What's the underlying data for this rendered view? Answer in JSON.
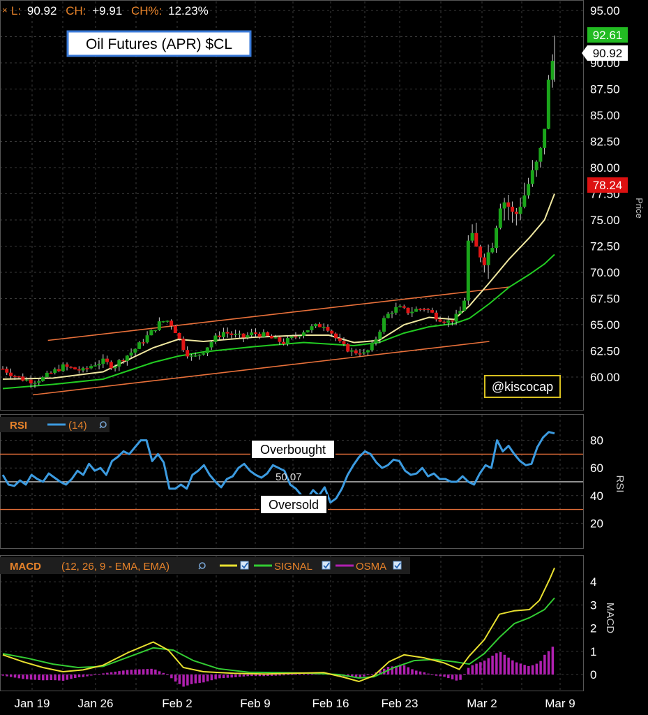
{
  "header": {
    "close_glyph": "×",
    "l_label": "L:",
    "l_value": "90.92",
    "ch_label": "CH:",
    "ch_value": "+9.91",
    "chp_label": "CH%:",
    "chp_value": "12.23%"
  },
  "title_box": "Oil Futures (APR) $CL",
  "watermark": "@kiscocap",
  "price_axis": {
    "label": "Price",
    "ticks": [
      "95.00",
      "92.50",
      "90.00",
      "87.50",
      "85.00",
      "82.50",
      "80.00",
      "77.50",
      "75.00",
      "72.50",
      "70.00",
      "67.50",
      "65.00",
      "62.50",
      "60.00"
    ],
    "high_tag": "92.61",
    "last_tag": "90.92",
    "low_tag": "78.24"
  },
  "rsi_panel": {
    "title": "RSI",
    "param": "(14)",
    "axis_label": "RSI",
    "ticks": [
      "80",
      "60",
      "40",
      "20"
    ],
    "overbought_label": "Overbought",
    "oversold_label": "Oversold",
    "mid_value": "50.07"
  },
  "macd_panel": {
    "title": "MACD",
    "params": "(12, 26, 9 - EMA, EMA)",
    "signal_label": "SIGNAL",
    "osma_label": "OSMA",
    "axis_label": "MACD",
    "ticks": [
      "4",
      "3",
      "2",
      "1",
      "0"
    ]
  },
  "x_axis": {
    "labels": [
      "Jan 19",
      "Jan 26",
      "Feb 2",
      "Feb 9",
      "Feb 16",
      "Feb 23",
      "Mar 2",
      "Mar 9"
    ]
  },
  "colors": {
    "background": "#000000",
    "grid": "#3a3a3a",
    "up_candle": "#1aa51a",
    "down_candle": "#e01515",
    "ma_fast": "#f0e8a0",
    "ma_slow": "#22cc22",
    "channel": "#e8703a",
    "rsi_line": "#3c9be0",
    "macd_line": "#e8e030",
    "signal_line": "#33cc33",
    "osma_bars": "#b020b0",
    "label_orange": "#e8832a",
    "tag_green": "#22bb22",
    "tag_red": "#dd1111"
  },
  "chart_data": [
    {
      "type": "candlestick",
      "title": "Oil Futures (APR) $CL",
      "ylabel": "Price",
      "ylim": [
        57.5,
        96.0
      ],
      "x_tick_labels": [
        "Jan 19",
        "Jan 26",
        "Feb 2",
        "Feb 9",
        "Feb 16",
        "Feb 23",
        "Mar 2",
        "Mar 9"
      ],
      "last": 90.92,
      "change": 9.91,
      "change_pct": 12.23,
      "session_high": 92.61,
      "session_low": 78.24,
      "close_path": [
        [
          0,
          60.8
        ],
        [
          4,
          60.2
        ],
        [
          8,
          59.8
        ],
        [
          12,
          59.6
        ],
        [
          16,
          59.9
        ],
        [
          20,
          60.5
        ],
        [
          24,
          61.0
        ],
        [
          28,
          60.8
        ],
        [
          32,
          60.6
        ],
        [
          36,
          61.2
        ],
        [
          40,
          61.5
        ],
        [
          44,
          61.0
        ],
        [
          48,
          61.8
        ],
        [
          52,
          62.5
        ],
        [
          56,
          63.5
        ],
        [
          60,
          64.5
        ],
        [
          63,
          65.3
        ],
        [
          66,
          65.4
        ],
        [
          68,
          64.8
        ],
        [
          70,
          63.8
        ],
        [
          72,
          62.8
        ],
        [
          74,
          62.1
        ],
        [
          76,
          61.8
        ],
        [
          80,
          62.5
        ],
        [
          84,
          63.6
        ],
        [
          88,
          64.3
        ],
        [
          92,
          64.0
        ],
        [
          96,
          63.8
        ],
        [
          100,
          64.2
        ],
        [
          104,
          64.0
        ],
        [
          108,
          63.6
        ],
        [
          112,
          63.3
        ],
        [
          116,
          63.8
        ],
        [
          120,
          64.4
        ],
        [
          124,
          64.8
        ],
        [
          128,
          65.0
        ],
        [
          130,
          64.6
        ],
        [
          132,
          64.0
        ],
        [
          134,
          63.3
        ],
        [
          136,
          62.9
        ],
        [
          138,
          62.6
        ],
        [
          140,
          62.3
        ],
        [
          142,
          62.5
        ],
        [
          144,
          62.2
        ],
        [
          146,
          62.6
        ],
        [
          148,
          63.3
        ],
        [
          150,
          64.3
        ],
        [
          152,
          65.5
        ],
        [
          154,
          66.1
        ],
        [
          156,
          66.5
        ],
        [
          158,
          66.6
        ],
        [
          160,
          66.4
        ],
        [
          162,
          66.2
        ],
        [
          164,
          66.4
        ],
        [
          166,
          66.5
        ],
        [
          168,
          66.6
        ],
        [
          170,
          66.3
        ],
        [
          172,
          65.9
        ],
        [
          174,
          65.6
        ],
        [
          176,
          65.4
        ],
        [
          178,
          65.3
        ],
        [
          180,
          65.6
        ],
        [
          182,
          66.0
        ],
        [
          184,
          67.4
        ],
        [
          186,
          74.2
        ],
        [
          188,
          72.4
        ],
        [
          190,
          71.9
        ],
        [
          192,
          71.3
        ],
        [
          194,
          72.0
        ],
        [
          196,
          73.5
        ],
        [
          198,
          76.6
        ],
        [
          200,
          76.8
        ],
        [
          202,
          76.2
        ],
        [
          204,
          75.1
        ],
        [
          206,
          76.4
        ],
        [
          208,
          77.4
        ],
        [
          210,
          78.7
        ],
        [
          212,
          79.8
        ],
        [
          214,
          80.9
        ],
        [
          216,
          84.0
        ],
        [
          218,
          89.1
        ],
        [
          220,
          90.92
        ]
      ],
      "series": [
        {
          "name": "fast MA",
          "path": [
            [
              0,
              59.8
            ],
            [
              20,
              59.9
            ],
            [
              40,
              60.5
            ],
            [
              60,
              62.8
            ],
            [
              70,
              63.6
            ],
            [
              80,
              63.4
            ],
            [
              100,
              63.8
            ],
            [
              120,
              64.0
            ],
            [
              130,
              64.0
            ],
            [
              140,
              63.3
            ],
            [
              150,
              63.5
            ],
            [
              160,
              65.0
            ],
            [
              170,
              65.7
            ],
            [
              180,
              65.5
            ],
            [
              186,
              66.8
            ],
            [
              194,
              69.0
            ],
            [
              202,
              71.3
            ],
            [
              210,
              73.3
            ],
            [
              216,
              75.0
            ],
            [
              220,
              77.5
            ]
          ]
        },
        {
          "name": "slow MA",
          "path": [
            [
              0,
              58.9
            ],
            [
              20,
              59.3
            ],
            [
              40,
              59.8
            ],
            [
              60,
              61.4
            ],
            [
              70,
              62.0
            ],
            [
              80,
              62.4
            ],
            [
              100,
              62.9
            ],
            [
              120,
              63.3
            ],
            [
              140,
              63.0
            ],
            [
              150,
              63.3
            ],
            [
              160,
              64.2
            ],
            [
              170,
              64.8
            ],
            [
              180,
              65.1
            ],
            [
              186,
              65.6
            ],
            [
              194,
              67.0
            ],
            [
              202,
              68.6
            ],
            [
              210,
              69.8
            ],
            [
              216,
              70.8
            ],
            [
              220,
              71.7
            ]
          ]
        },
        {
          "name": "channel upper",
          "path": [
            [
              18,
              63.5
            ],
            [
              202,
              68.6
            ]
          ]
        },
        {
          "name": "channel lower",
          "path": [
            [
              12,
              58.3
            ],
            [
              194,
              63.4
            ]
          ]
        }
      ]
    },
    {
      "type": "line",
      "title": "RSI",
      "ylim": [
        0,
        100
      ],
      "reference_lines": [
        70,
        50,
        30
      ],
      "overbought": 70,
      "oversold": 30,
      "mid": 50.07,
      "series": [
        {
          "name": "RSI (14)",
          "values": [
            55,
            48,
            47,
            51,
            48,
            55,
            52,
            50,
            56,
            53,
            50,
            48,
            52,
            58,
            55,
            63,
            58,
            60,
            55,
            65,
            68,
            72,
            70,
            75,
            80,
            80,
            65,
            70,
            64,
            45,
            45,
            48,
            45,
            55,
            58,
            62,
            55,
            50,
            46,
            52,
            54,
            60,
            63,
            58,
            55,
            53,
            56,
            62,
            60,
            58,
            48,
            45,
            40,
            38,
            44,
            40,
            46,
            35,
            38,
            45,
            55,
            62,
            68,
            72,
            70,
            64,
            60,
            62,
            66,
            65,
            58,
            55,
            56,
            60,
            54,
            56,
            52,
            52,
            50,
            50,
            54,
            50,
            48,
            56,
            62,
            60,
            80,
            72,
            76,
            70,
            65,
            62,
            63,
            75,
            82,
            86,
            85
          ]
        }
      ]
    },
    {
      "type": "line",
      "title": "MACD",
      "params": "(12, 26, 9 - EMA, EMA)",
      "ylim": [
        -0.6,
        4.7
      ],
      "series": [
        {
          "name": "MACD",
          "path": [
            [
              0,
              0.85
            ],
            [
              8,
              0.55
            ],
            [
              16,
              0.3
            ],
            [
              24,
              0.12
            ],
            [
              32,
              0.2
            ],
            [
              40,
              0.4
            ],
            [
              50,
              0.95
            ],
            [
              60,
              1.4
            ],
            [
              66,
              1.05
            ],
            [
              72,
              0.3
            ],
            [
              80,
              0.12
            ],
            [
              92,
              0.05
            ],
            [
              104,
              0.02
            ],
            [
              116,
              0.05
            ],
            [
              128,
              0.08
            ],
            [
              136,
              -0.12
            ],
            [
              142,
              -0.3
            ],
            [
              148,
              -0.05
            ],
            [
              154,
              0.55
            ],
            [
              160,
              0.85
            ],
            [
              168,
              0.72
            ],
            [
              176,
              0.5
            ],
            [
              182,
              0.22
            ],
            [
              186,
              0.8
            ],
            [
              192,
              1.5
            ],
            [
              198,
              2.6
            ],
            [
              204,
              2.75
            ],
            [
              210,
              2.8
            ],
            [
              214,
              3.2
            ],
            [
              218,
              4.1
            ],
            [
              220,
              4.6
            ]
          ]
        },
        {
          "name": "SIGNAL",
          "path": [
            [
              0,
              0.9
            ],
            [
              10,
              0.7
            ],
            [
              20,
              0.45
            ],
            [
              30,
              0.3
            ],
            [
              40,
              0.35
            ],
            [
              50,
              0.75
            ],
            [
              60,
              1.15
            ],
            [
              68,
              1.05
            ],
            [
              76,
              0.6
            ],
            [
              86,
              0.25
            ],
            [
              98,
              0.1
            ],
            [
              110,
              0.08
            ],
            [
              122,
              0.06
            ],
            [
              134,
              0.0
            ],
            [
              142,
              -0.15
            ],
            [
              148,
              -0.1
            ],
            [
              156,
              0.3
            ],
            [
              164,
              0.6
            ],
            [
              172,
              0.65
            ],
            [
              180,
              0.55
            ],
            [
              186,
              0.45
            ],
            [
              192,
              0.9
            ],
            [
              198,
              1.6
            ],
            [
              204,
              2.2
            ],
            [
              210,
              2.45
            ],
            [
              216,
              2.8
            ],
            [
              220,
              3.3
            ]
          ]
        }
      ],
      "osma_bars": [
        {
          "range": [
            0,
            150
          ],
          "approx_values": [
            -0.2,
            0.3
          ]
        },
        {
          "range": [
            186,
            220
          ],
          "approx_values": [
            0.6,
            1.3
          ]
        }
      ]
    }
  ]
}
